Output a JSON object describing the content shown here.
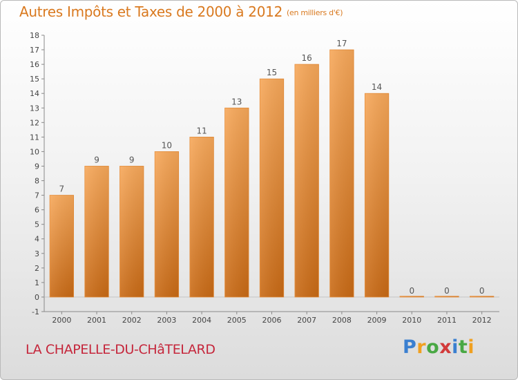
{
  "title": "Autres Impôts et Taxes de 2000 à 2012",
  "subtitle": "(en milliers d'€)",
  "location": "LA CHAPELLE-DU-CHâTELARD",
  "logo": {
    "text": "Proxiti",
    "letters": [
      "P",
      "r",
      "o",
      "x",
      "i",
      "t",
      "i"
    ],
    "colors": [
      "#3a7fd0",
      "#f0a020",
      "#49a844",
      "#d23a3a",
      "#3a7fd0",
      "#49a844",
      "#f0a020"
    ]
  },
  "chart_data": {
    "type": "bar",
    "categories": [
      "2000",
      "2001",
      "2002",
      "2003",
      "2004",
      "2005",
      "2006",
      "2007",
      "2008",
      "2009",
      "2010",
      "2011",
      "2012"
    ],
    "values": [
      7,
      9,
      9,
      10,
      11,
      13,
      15,
      16,
      17,
      14,
      0,
      0,
      0
    ],
    "ylim": [
      -1,
      18
    ],
    "yticks": [
      -1,
      0,
      1,
      2,
      3,
      4,
      5,
      6,
      7,
      8,
      9,
      10,
      11,
      12,
      13,
      14,
      15,
      16,
      17,
      18
    ],
    "grid": false,
    "bar_color": "#f0913a"
  }
}
